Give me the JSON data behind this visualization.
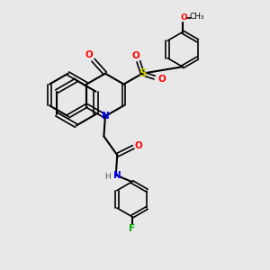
{
  "background_color": "#e8e8e8",
  "bond_color": "#000000",
  "atom_colors": {
    "O": "#ff0000",
    "N": "#0000ff",
    "S": "#cccc00",
    "F": "#00aa00",
    "C": "#000000",
    "H": "#555555"
  },
  "figsize": [
    3.0,
    3.0
  ],
  "dpi": 100
}
